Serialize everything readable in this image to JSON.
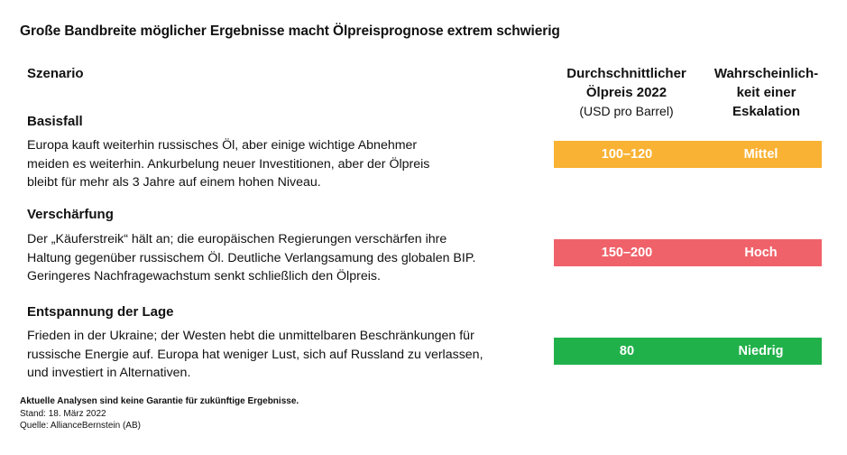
{
  "title": "Große Bandbreite möglicher Ergebnisse macht Ölpreisprognose extrem schwierig",
  "columns": {
    "scenario": "Szenario",
    "price_line1": "Durchschnittlicher",
    "price_line2": "Ölpreis 2022",
    "price_unit": "(USD pro Barrel)",
    "prob_line1": "Wahrscheinlich-",
    "prob_line2": "keit einer",
    "prob_line3": "Eskalation"
  },
  "scenarios": [
    {
      "name": "Basisfall",
      "desc": [
        "Europa kauft weiterhin russisches Öl, aber einige wichtige Abnehmer",
        "meiden es weiterhin. Ankurbelung neuer Investitionen, aber der Ölpreis",
        "bleibt für mehr als 3 Jahre auf einem hohen Niveau."
      ],
      "price": "100–120",
      "probability": "Mittel",
      "color": "#f9b233"
    },
    {
      "name": "Verschärfung",
      "desc": [
        "Der „Käuferstreik“ hält an; die europäischen Regierungen verschärfen ihre",
        "Haltung gegenüber russischem Öl. Deutliche Verlangsamung des globalen BIP.",
        "Geringeres Nachfragewachstum senkt schließlich den Ölpreis."
      ],
      "price": "150–200",
      "probability": "Hoch",
      "color": "#f0626a"
    },
    {
      "name": "Entspannung der Lage",
      "desc": [
        "Frieden in der Ukraine; der Westen hebt die unmittelbaren Beschränkungen für",
        "russische Energie auf. Europa hat weniger Lust, sich auf Russland zu verlassen,",
        "und investiert in Alternativen."
      ],
      "price": "80",
      "probability": "Niedrig",
      "color": "#21b14b"
    }
  ],
  "footer": {
    "disclaimer": "Aktuelle Analysen sind keine Garantie für zukünftige Ergebnisse.",
    "date": "Stand: 18. März 2022",
    "source": "Quelle: AllianceBernstein (AB)"
  }
}
